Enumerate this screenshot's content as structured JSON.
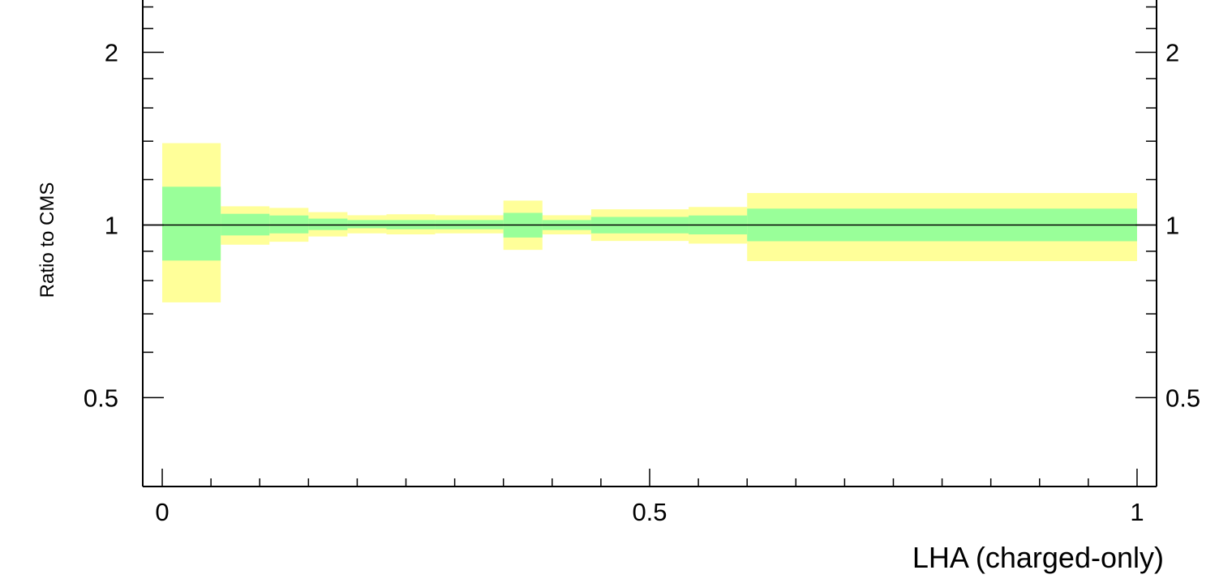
{
  "chart_data": {
    "type": "area",
    "title": "",
    "xlabel": "LHA (charged-only)",
    "ylabel": "Ratio to CMS",
    "xlim": [
      -0.02,
      1.02
    ],
    "ylim": [
      0.35,
      2.5
    ],
    "ylog": true,
    "grid": false,
    "x_ticks": [
      {
        "value": 0,
        "label": "0"
      },
      {
        "value": 0.5,
        "label": "0.5"
      },
      {
        "value": 1,
        "label": "1"
      }
    ],
    "y_ticks": [
      {
        "value": 0.5,
        "label": "0.5"
      },
      {
        "value": 1,
        "label": "1"
      },
      {
        "value": 2,
        "label": "2"
      }
    ],
    "colors": {
      "inner_band": "#99ff99",
      "outer_band": "#ffff99",
      "reference_line": "#000000"
    },
    "bins": [
      {
        "x0": 0.0,
        "x1": 0.06,
        "inner_low": 0.867,
        "inner_high": 1.166,
        "outer_low": 0.733,
        "outer_high": 1.389
      },
      {
        "x0": 0.06,
        "x1": 0.11,
        "inner_low": 0.959,
        "inner_high": 1.046,
        "outer_low": 0.924,
        "outer_high": 1.078
      },
      {
        "x0": 0.11,
        "x1": 0.15,
        "inner_low": 0.967,
        "inner_high": 1.039,
        "outer_low": 0.935,
        "outer_high": 1.071
      },
      {
        "x0": 0.15,
        "x1": 0.19,
        "inner_low": 0.98,
        "inner_high": 1.026,
        "outer_low": 0.955,
        "outer_high": 1.053
      },
      {
        "x0": 0.19,
        "x1": 0.23,
        "inner_low": 0.987,
        "inner_high": 1.02,
        "outer_low": 0.967,
        "outer_high": 1.04
      },
      {
        "x0": 0.23,
        "x1": 0.28,
        "inner_low": 0.983,
        "inner_high": 1.02,
        "outer_low": 0.963,
        "outer_high": 1.044
      },
      {
        "x0": 0.28,
        "x1": 0.35,
        "inner_low": 0.983,
        "inner_high": 1.02,
        "outer_low": 0.967,
        "outer_high": 1.04
      },
      {
        "x0": 0.35,
        "x1": 0.39,
        "inner_low": 0.951,
        "inner_high": 1.05,
        "outer_low": 0.905,
        "outer_high": 1.103
      },
      {
        "x0": 0.39,
        "x1": 0.44,
        "inner_low": 0.98,
        "inner_high": 1.02,
        "outer_low": 0.963,
        "outer_high": 1.04
      },
      {
        "x0": 0.44,
        "x1": 0.54,
        "inner_low": 0.967,
        "inner_high": 1.033,
        "outer_low": 0.938,
        "outer_high": 1.065
      },
      {
        "x0": 0.54,
        "x1": 0.6,
        "inner_low": 0.963,
        "inner_high": 1.039,
        "outer_low": 0.928,
        "outer_high": 1.075
      },
      {
        "x0": 0.6,
        "x1": 1.0,
        "inner_low": 0.937,
        "inner_high": 1.068,
        "outer_low": 0.865,
        "outer_high": 1.137
      }
    ]
  }
}
